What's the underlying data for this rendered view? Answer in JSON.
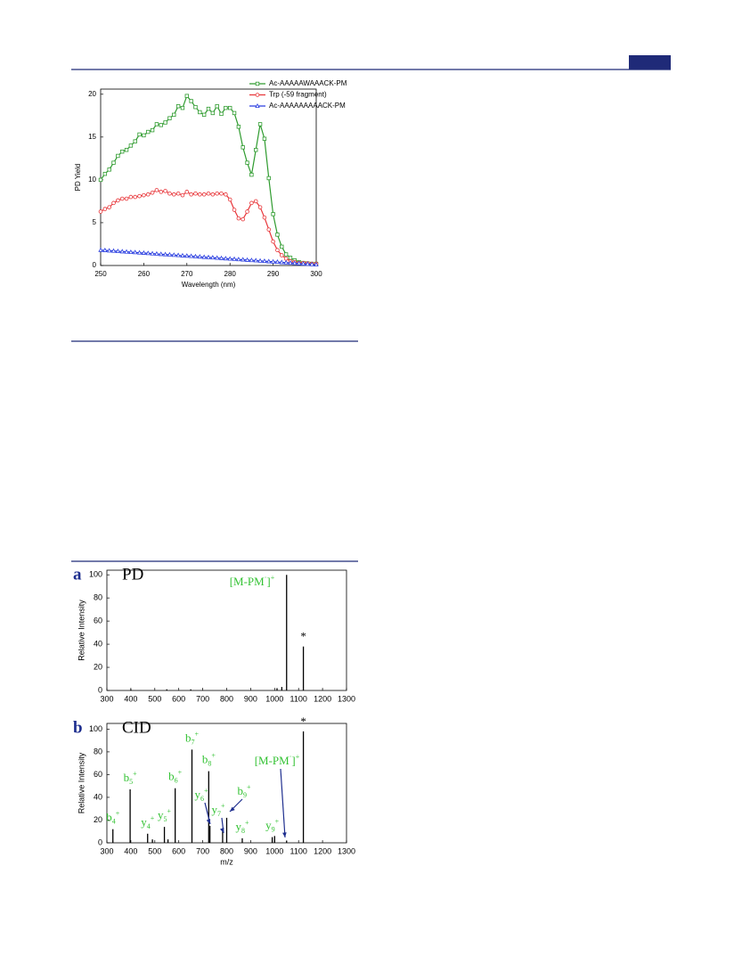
{
  "chart_data": [
    {
      "type": "line",
      "xlabel": "Wavelength (nm)",
      "ylabel": "PD Yield",
      "x": [
        250,
        251,
        252,
        253,
        254,
        255,
        256,
        257,
        258,
        259,
        260,
        261,
        262,
        263,
        264,
        265,
        266,
        267,
        268,
        269,
        270,
        271,
        272,
        273,
        274,
        275,
        276,
        277,
        278,
        279,
        280,
        281,
        282,
        283,
        284,
        285,
        286,
        287,
        288,
        289,
        290,
        291,
        292,
        293,
        294,
        295,
        296,
        297,
        298,
        299,
        300
      ],
      "series": [
        {
          "name": "Ac-AAAAAWAAACK-PM",
          "color": "#2e9b2e",
          "marker": "square",
          "values": [
            10,
            10.7,
            11.2,
            12,
            12.8,
            13.3,
            13.5,
            14,
            14.5,
            15.3,
            15.2,
            15.6,
            15.8,
            16.5,
            16.4,
            16.7,
            17.2,
            17.6,
            18.6,
            18.4,
            19.8,
            19.2,
            18.5,
            17.9,
            17.6,
            18.3,
            17.8,
            18.6,
            17.7,
            18.4,
            18.4,
            17.8,
            16.2,
            13.8,
            12,
            10.6,
            13.5,
            16.5,
            14.8,
            10.2,
            6,
            3.6,
            2.2,
            1.3,
            0.9,
            0.6,
            0.4,
            0.3,
            0.25,
            0.2,
            0.2
          ]
        },
        {
          "name": "Trp (-59 fragment)",
          "color": "#e8363a",
          "marker": "circle",
          "values": [
            6.3,
            6.6,
            6.8,
            7.3,
            7.6,
            7.8,
            7.8,
            8,
            8,
            8.1,
            8.2,
            8.3,
            8.5,
            8.8,
            8.6,
            8.7,
            8.4,
            8.3,
            8.4,
            8.2,
            8.6,
            8.3,
            8.4,
            8.3,
            8.3,
            8.4,
            8.3,
            8.4,
            8.4,
            8.3,
            7.7,
            6.5,
            5.5,
            5.4,
            6.3,
            7.3,
            7.5,
            6.8,
            5.6,
            4.2,
            2.8,
            1.8,
            1.2,
            0.8,
            0.5,
            0.4,
            0.3,
            0.3,
            0.25,
            0.2,
            0.2
          ]
        },
        {
          "name": "Ac-AAAAAAAAACK-PM",
          "color": "#2a3ee0",
          "marker": "triangle",
          "values": [
            1.8,
            1.77,
            1.73,
            1.7,
            1.66,
            1.63,
            1.6,
            1.56,
            1.53,
            1.49,
            1.46,
            1.43,
            1.39,
            1.36,
            1.32,
            1.29,
            1.26,
            1.22,
            1.19,
            1.15,
            1.12,
            1.09,
            1.05,
            1.02,
            0.98,
            0.95,
            0.92,
            0.88,
            0.85,
            0.81,
            0.78,
            0.75,
            0.71,
            0.68,
            0.64,
            0.61,
            0.58,
            0.54,
            0.51,
            0.47,
            0.44,
            0.41,
            0.37,
            0.34,
            0.3,
            0.27,
            0.24,
            0.2,
            0.17,
            0.13,
            0.1
          ]
        }
      ],
      "xlim": [
        250,
        300
      ],
      "xticks": [
        250,
        260,
        270,
        280,
        290,
        300
      ],
      "ylim": [
        0,
        20.6
      ],
      "yticks": [
        0,
        5,
        10,
        15,
        20
      ],
      "legend": "top-right"
    },
    {
      "type": "stem",
      "panel": "a",
      "title": "PD",
      "ylabel": "Relative Intensity",
      "color": "#000000",
      "x": [
        400,
        550,
        650,
        1010,
        1030,
        1050,
        1120
      ],
      "values": [
        1,
        1,
        1,
        2,
        3,
        100,
        38
      ],
      "peak_labels": [
        null,
        null,
        null,
        null,
        null,
        {
          "ion": "[M-PM",
          "sup": "·",
          "tail": "]",
          "charge": "+"
        },
        {
          "ion": "*"
        }
      ],
      "xlim": [
        300,
        1300
      ],
      "xticks": [
        300,
        400,
        500,
        600,
        700,
        800,
        900,
        1000,
        1100,
        1200,
        1300
      ],
      "ylim": [
        0,
        104
      ],
      "yticks": [
        0,
        20,
        40,
        60,
        80,
        100
      ]
    },
    {
      "type": "stem",
      "panel": "b",
      "title": "CID",
      "xlabel": "m/z",
      "ylabel": "Relative Intensity",
      "color": "#000000",
      "x": [
        325,
        397,
        470,
        490,
        540,
        555,
        585,
        655,
        725,
        730,
        783,
        800,
        865,
        990,
        1000,
        1050,
        1120
      ],
      "values": [
        12,
        47,
        8,
        3,
        14,
        3,
        48,
        82,
        63,
        15,
        10,
        22,
        4,
        5,
        6,
        2,
        98
      ],
      "peak_labels": [
        {
          "ion": "b",
          "sub": "4",
          "charge": "+"
        },
        {
          "ion": "b",
          "sub": "5",
          "charge": "+"
        },
        {
          "ion": "y",
          "sub": "4",
          "charge": "+"
        },
        null,
        {
          "ion": "y",
          "sub": "5",
          "charge": "+"
        },
        null,
        {
          "ion": "b",
          "sub": "6",
          "charge": "+"
        },
        {
          "ion": "b",
          "sub": "7",
          "charge": "+"
        },
        {
          "ion": "b",
          "sub": "8",
          "charge": "+"
        },
        {
          "ion": "y",
          "sub": "6",
          "charge": "+"
        },
        {
          "ion": "y",
          "sub": "7",
          "charge": "+"
        },
        {
          "ion": "b",
          "sub": "9",
          "charge": "+"
        },
        {
          "ion": "y",
          "sub": "8",
          "charge": "+"
        },
        {
          "ion": "y",
          "sub": "9",
          "charge": "+"
        },
        null,
        {
          "ion": "[M-PM",
          "sup": "·",
          "tail": "]",
          "charge": "+"
        },
        {
          "ion": "*"
        }
      ],
      "xlim": [
        300,
        1300
      ],
      "xticks": [
        300,
        400,
        500,
        600,
        700,
        800,
        900,
        1000,
        1100,
        1200,
        1300
      ],
      "ylim": [
        0,
        105
      ],
      "yticks": [
        0,
        20,
        40,
        60,
        80,
        100
      ]
    }
  ]
}
